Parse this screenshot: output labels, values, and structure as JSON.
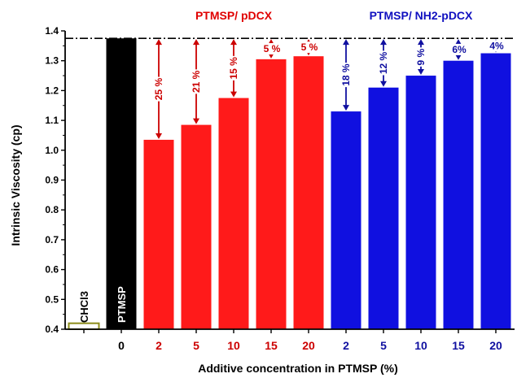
{
  "chart_data": {
    "type": "bar",
    "xlabel": "Additive concentration in PTMSP (%)",
    "ylabel": "Intrinsic Viscosity (cp)",
    "ylim": [
      0.4,
      1.4
    ],
    "yticks": [
      "0.4",
      "0.5",
      "0.6",
      "0.7",
      "0.8",
      "0.9",
      "1.0",
      "1.1",
      "1.2",
      "1.3",
      "1.4"
    ],
    "reference_line": 1.375,
    "groups": [
      {
        "name": "PTMSP/ pDCX",
        "color": "#ff1a1a",
        "label_color": "#cc0000"
      },
      {
        "name": "PTMSP/ NH2-pDCX",
        "color": "#1010e0",
        "label_color": "#1010a0"
      }
    ],
    "bars": [
      {
        "category": "",
        "value": 0.42,
        "color": "#ffffff",
        "stroke": "#8c8c1a",
        "inner_label": "CHCl3",
        "inner_label_color": "#000000",
        "reduction": ""
      },
      {
        "category": "0",
        "value": 1.375,
        "color": "#000000",
        "inner_label": "PTMSP",
        "inner_label_color": "#ffffff",
        "reduction": ""
      },
      {
        "category": "2",
        "value": 1.035,
        "color": "#ff1a1a",
        "group": 0,
        "reduction": "25 %"
      },
      {
        "category": "5",
        "value": 1.085,
        "color": "#ff1a1a",
        "group": 0,
        "reduction": "21 %"
      },
      {
        "category": "10",
        "value": 1.175,
        "color": "#ff1a1a",
        "group": 0,
        "reduction": "15 %"
      },
      {
        "category": "15",
        "value": 1.305,
        "color": "#ff1a1a",
        "group": 0,
        "reduction": "5 %"
      },
      {
        "category": "20",
        "value": 1.315,
        "color": "#ff1a1a",
        "group": 0,
        "reduction": "5 %"
      },
      {
        "category": "2",
        "value": 1.13,
        "color": "#1010e0",
        "group": 1,
        "reduction": "18 %"
      },
      {
        "category": "5",
        "value": 1.21,
        "color": "#1010e0",
        "group": 1,
        "reduction": "12 %"
      },
      {
        "category": "10",
        "value": 1.25,
        "color": "#1010e0",
        "group": 1,
        "reduction": "9 %"
      },
      {
        "category": "15",
        "value": 1.3,
        "color": "#1010e0",
        "group": 1,
        "reduction": "6%"
      },
      {
        "category": "20",
        "value": 1.325,
        "color": "#1010e0",
        "group": 1,
        "reduction": "4%"
      }
    ],
    "grid": false
  }
}
